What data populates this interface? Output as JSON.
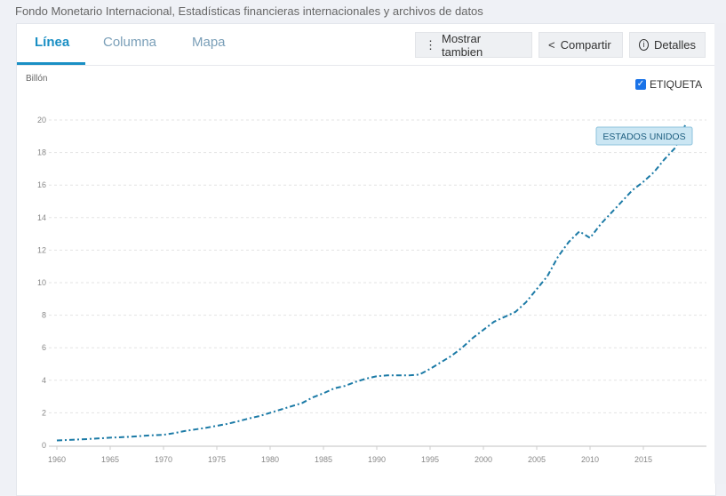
{
  "source": "Fondo Monetario Internacional, Estadísticas financieras internacionales y archivos de datos",
  "tabs": [
    {
      "label": "Línea",
      "active": true
    },
    {
      "label": "Columna",
      "active": false
    },
    {
      "label": "Mapa",
      "active": false
    }
  ],
  "buttons": {
    "show_also": "Mostrar tambien",
    "share": "Compartir",
    "details": "Detalles"
  },
  "label_toggle": {
    "label": "ETIQUETA",
    "checked": true
  },
  "colors": {
    "accent": "#1a8fc4",
    "line": "#1b7aa6",
    "tooltip_bg": "#cbe6f3"
  },
  "chart_data": {
    "type": "line",
    "ylabel": "Billón",
    "ylim": [
      0,
      20
    ],
    "yticks": [
      0,
      2,
      4,
      6,
      8,
      10,
      12,
      14,
      16,
      18,
      20
    ],
    "xticks": [
      1960,
      1965,
      1970,
      1975,
      1980,
      1985,
      1990,
      1995,
      2000,
      2005,
      2010,
      2015
    ],
    "xlim": [
      1960,
      2020
    ],
    "grid": true,
    "series": [
      {
        "name": "ESTADOS UNIDOS",
        "line_style": "dash-dot",
        "x": [
          1960,
          1961,
          1962,
          1963,
          1964,
          1965,
          1966,
          1967,
          1968,
          1969,
          1970,
          1971,
          1972,
          1973,
          1974,
          1975,
          1976,
          1977,
          1978,
          1979,
          1980,
          1981,
          1982,
          1983,
          1984,
          1985,
          1986,
          1987,
          1988,
          1989,
          1990,
          1991,
          1992,
          1993,
          1994,
          1995,
          1996,
          1997,
          1998,
          1999,
          2000,
          2001,
          2002,
          2003,
          2004,
          2005,
          2006,
          2007,
          2008,
          2009,
          2010,
          2011,
          2012,
          2013,
          2014,
          2015,
          2016,
          2017,
          2018,
          2019
        ],
        "values": [
          0.3,
          0.33,
          0.36,
          0.39,
          0.43,
          0.47,
          0.5,
          0.53,
          0.58,
          0.62,
          0.65,
          0.75,
          0.88,
          0.98,
          1.08,
          1.2,
          1.32,
          1.48,
          1.65,
          1.8,
          2.0,
          2.2,
          2.4,
          2.6,
          2.95,
          3.2,
          3.5,
          3.65,
          3.9,
          4.1,
          4.25,
          4.3,
          4.3,
          4.3,
          4.35,
          4.7,
          5.1,
          5.5,
          6.0,
          6.6,
          7.1,
          7.6,
          7.9,
          8.2,
          8.8,
          9.6,
          10.4,
          11.6,
          12.5,
          13.15,
          12.75,
          13.6,
          14.3,
          15.0,
          15.7,
          16.2,
          16.8,
          17.6,
          18.3,
          19.8
        ]
      }
    ],
    "annotation": "ESTADOS UNIDOS"
  }
}
